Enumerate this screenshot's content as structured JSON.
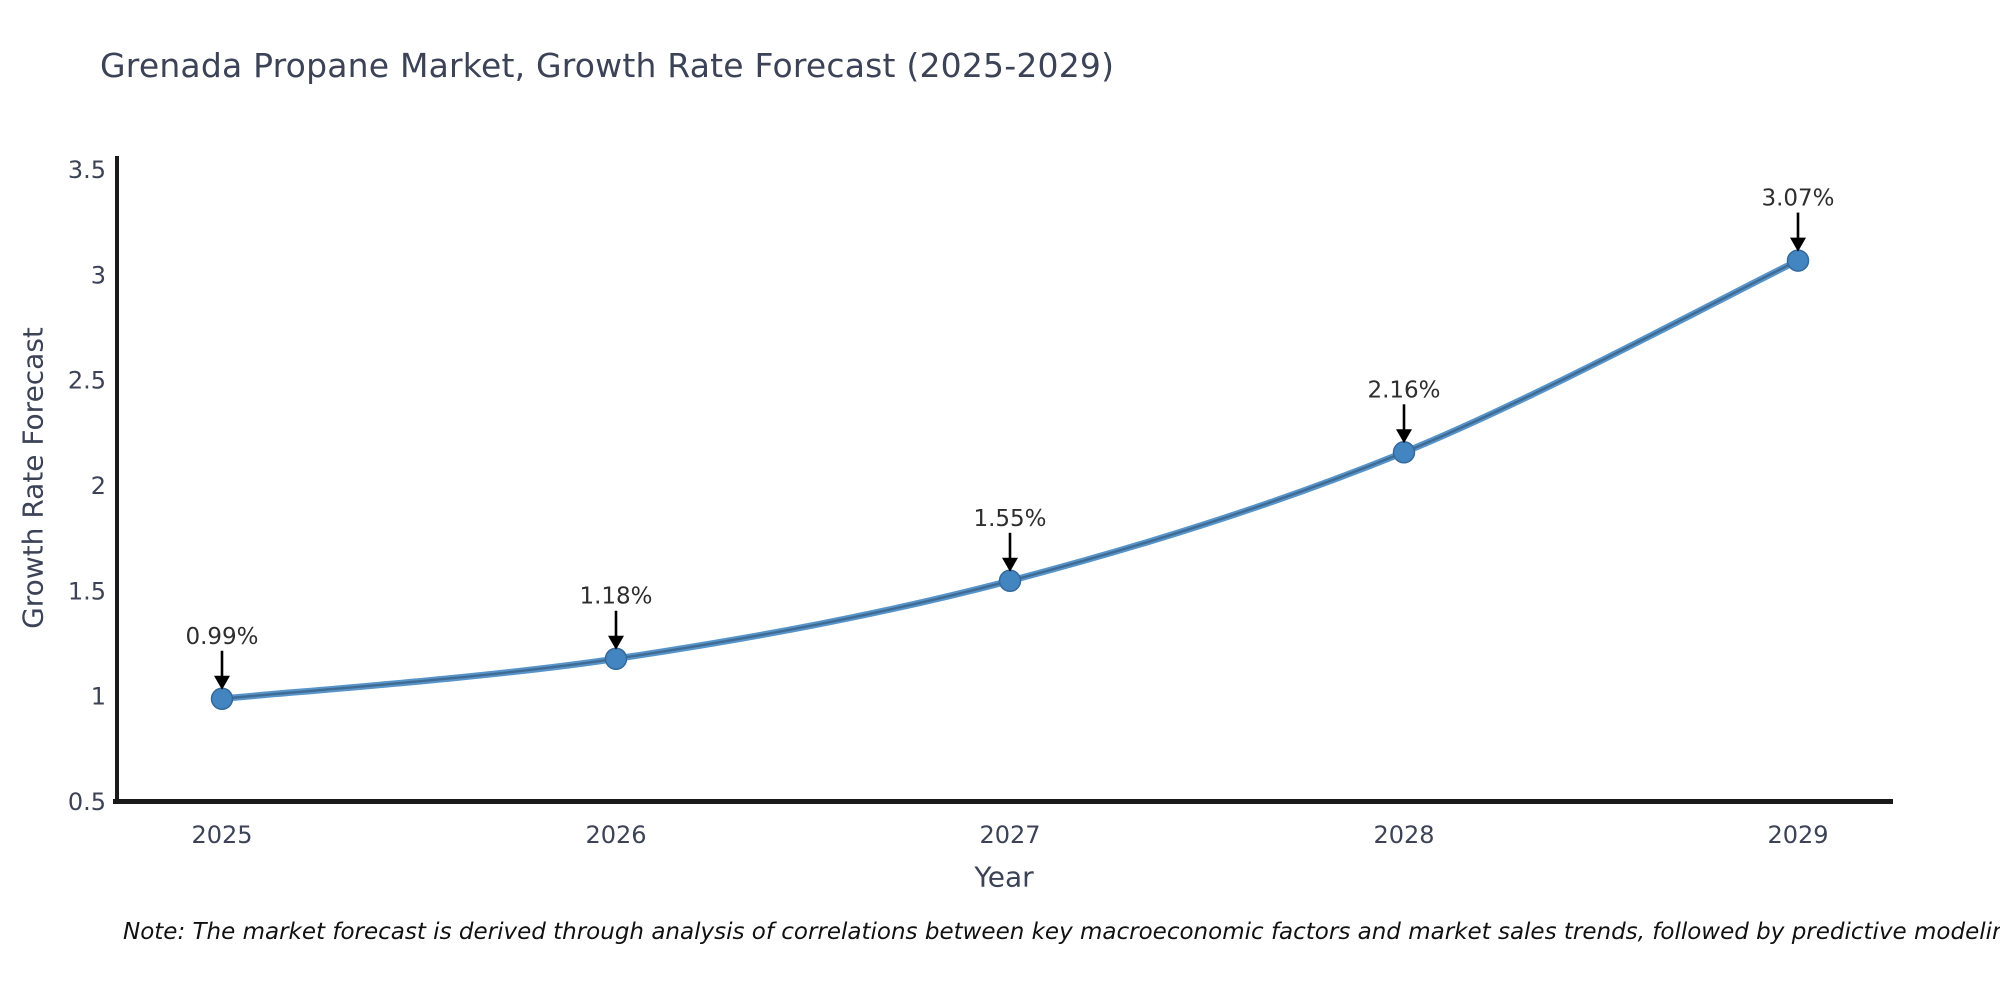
{
  "chart_data": {
    "type": "line",
    "title": "Grenada Propane Market, Growth Rate Forecast (2025-2029)",
    "xlabel": "Year",
    "ylabel": "Growth Rate Forecast",
    "x": [
      2025,
      2026,
      2027,
      2028,
      2029
    ],
    "values": [
      0.99,
      1.18,
      1.55,
      2.16,
      3.07
    ],
    "point_labels": [
      "0.99%",
      "1.18%",
      "1.55%",
      "2.16%",
      "3.07%"
    ],
    "xticks": [
      "2025",
      "2026",
      "2027",
      "2028",
      "2029"
    ],
    "yticks": [
      0.5,
      1,
      1.5,
      2,
      2.5,
      3,
      3.5
    ],
    "ytick_labels": [
      "0.5",
      "1",
      "1.5",
      "2",
      "2.5",
      "3",
      "3.5"
    ],
    "ylim": [
      0.5,
      3.5
    ],
    "grid": false,
    "legend": "none",
    "marker": "circle",
    "annotation_arrows": "black-down-arrows",
    "note": "Note: The market forecast is derived through analysis of correlations between key macroeconomic factors and market sales trends, followed by predictive modeling to project future sales",
    "colors": {
      "line": "#5794c9",
      "line_core": "#3f6b94",
      "marker_fill": "#4285c0",
      "marker_edge": "#35699b",
      "axis_spine": "#1a1a1a",
      "tick_text": "#3c4357",
      "title_text": "#3c4357",
      "annotation_text": "#2e2e2e",
      "arrow": "#000000",
      "background": "#ffffff"
    }
  }
}
